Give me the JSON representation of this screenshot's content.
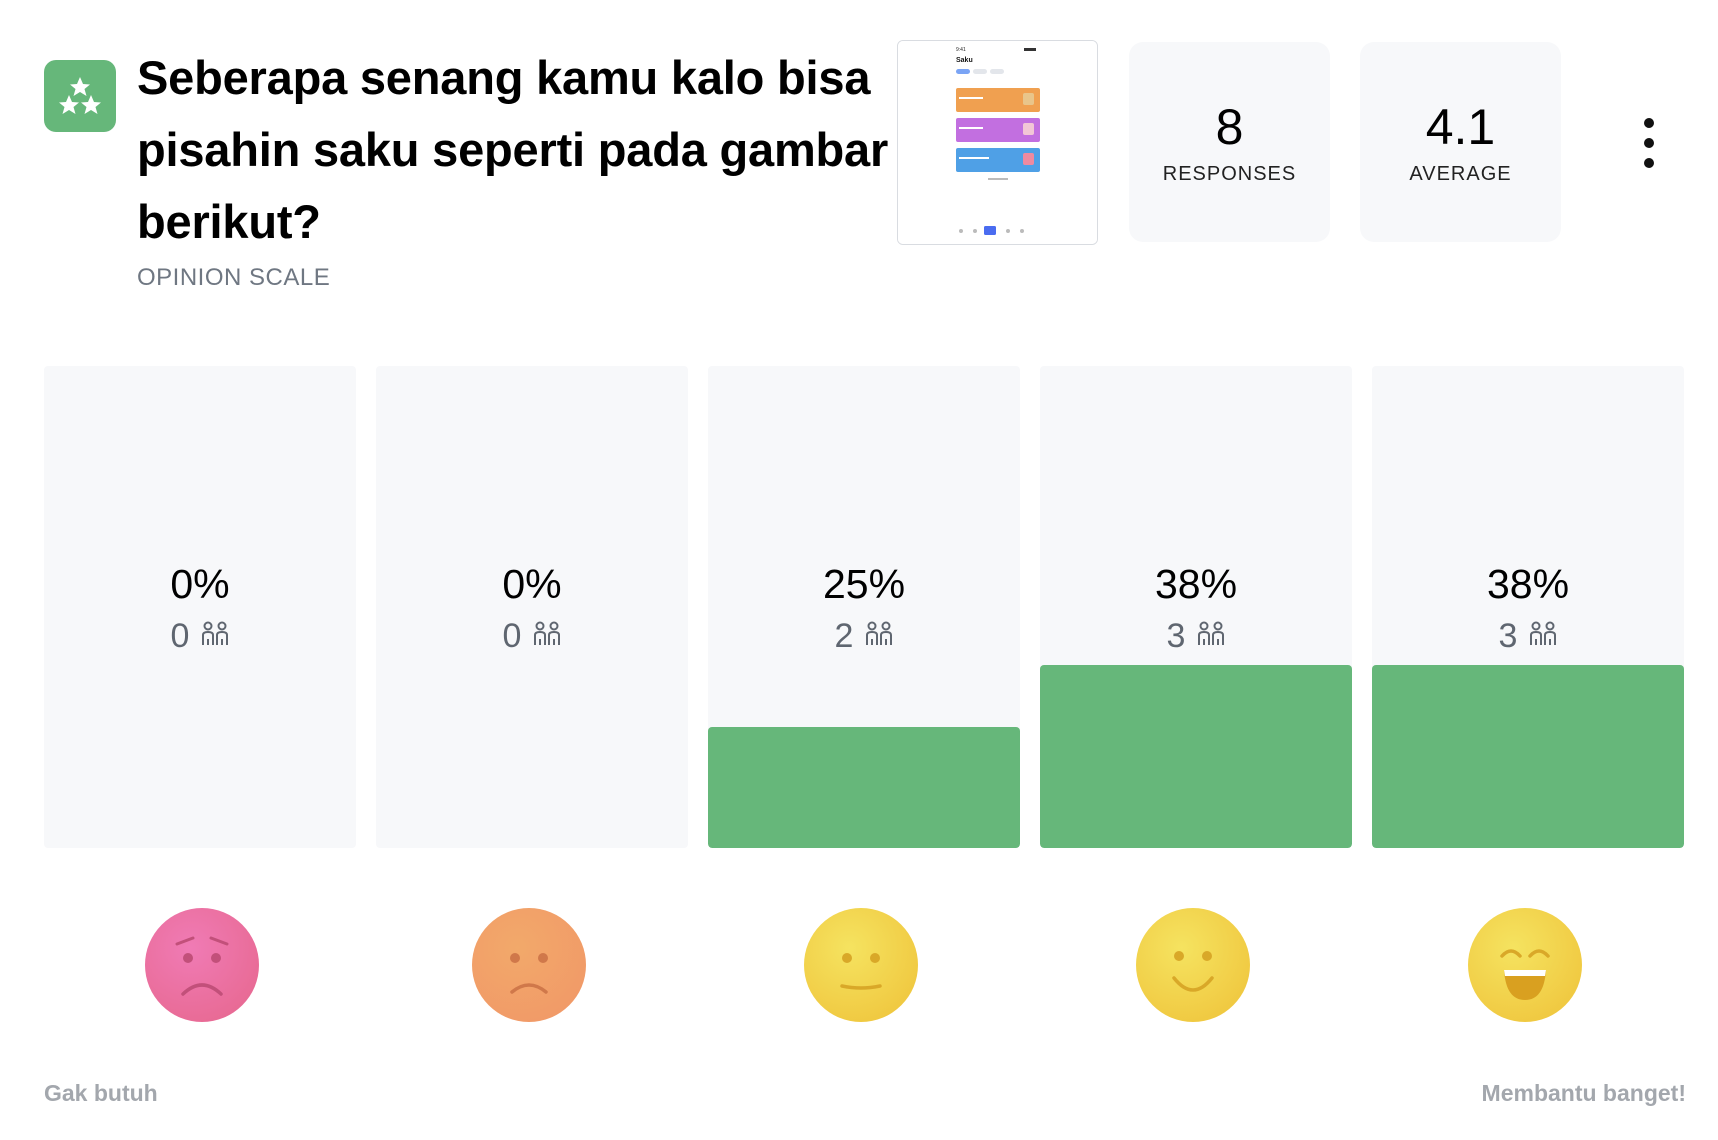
{
  "question": {
    "title": "Seberapa senang kamu kalo bisa pisahin saku seperti pada gambar berikut?",
    "type_label": "OPINION SCALE",
    "icon": "stars-icon",
    "icon_color": "#66b77a"
  },
  "thumbnail": {
    "app_title": "Saku",
    "cards": [
      {
        "title": "Menabung",
        "color": "#f0a050"
      },
      {
        "title": "Pesanan",
        "color": "#c26fe0"
      },
      {
        "title": "Belanja Bulanan",
        "color": "#4fa0e6"
      }
    ]
  },
  "stats": {
    "responses_value": "8",
    "responses_label": "RESPONSES",
    "average_value": "4.1",
    "average_label": "AVERAGE"
  },
  "menu_icon": "more-vertical-icon",
  "bars": [
    {
      "percent_label": "0%",
      "count": "0",
      "value": 0.0,
      "face": "sad-face-icon"
    },
    {
      "percent_label": "0%",
      "count": "0",
      "value": 0.0,
      "face": "frown-face-icon"
    },
    {
      "percent_label": "25%",
      "count": "2",
      "value": 0.25,
      "face": "neutral-face-icon"
    },
    {
      "percent_label": "38%",
      "count": "3",
      "value": 0.38,
      "face": "smile-face-icon"
    },
    {
      "percent_label": "38%",
      "count": "3",
      "value": 0.38,
      "face": "laugh-face-icon"
    }
  ],
  "scale": {
    "min_label": "Gak butuh",
    "max_label": "Membantu banget!"
  },
  "colors": {
    "fill": "#66b77a",
    "bar_bg": "#f7f8fa",
    "muted_text": "#a3a7ad"
  }
}
